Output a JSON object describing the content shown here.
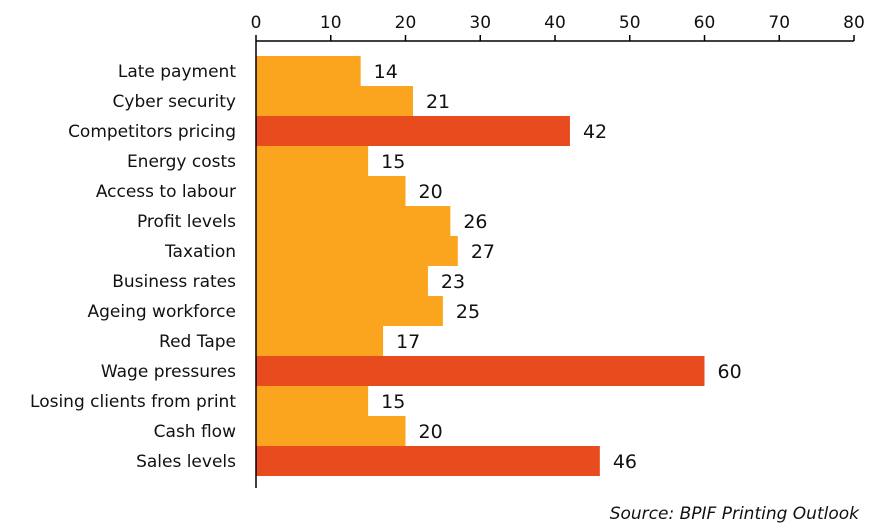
{
  "chart_data": {
    "type": "bar",
    "orientation": "horizontal",
    "categories": [
      "Late payment",
      "Cyber security",
      "Competitors pricing",
      "Energy costs",
      "Access to labour",
      "Profit levels",
      "Taxation",
      "Business rates",
      "Ageing workforce",
      "Red Tape",
      "Wage pressures",
      "Losing clients from print",
      "Cash flow",
      "Sales levels"
    ],
    "values": [
      14,
      21,
      42,
      15,
      20,
      26,
      27,
      23,
      25,
      17,
      60,
      15,
      20,
      46
    ],
    "highlighted": [
      false,
      false,
      true,
      false,
      false,
      false,
      false,
      false,
      false,
      false,
      true,
      false,
      false,
      true
    ],
    "xlim": [
      0,
      80
    ],
    "xticks": [
      0,
      10,
      20,
      30,
      40,
      50,
      60,
      70,
      80
    ],
    "axis_position": "top",
    "grid": false,
    "title": "",
    "xlabel": "",
    "ylabel": "",
    "colors": {
      "bar": "#FBA41E",
      "bar_highlight": "#E84C1E",
      "axis": "#000000"
    },
    "source": "Source: BPIF Printing Outlook"
  }
}
